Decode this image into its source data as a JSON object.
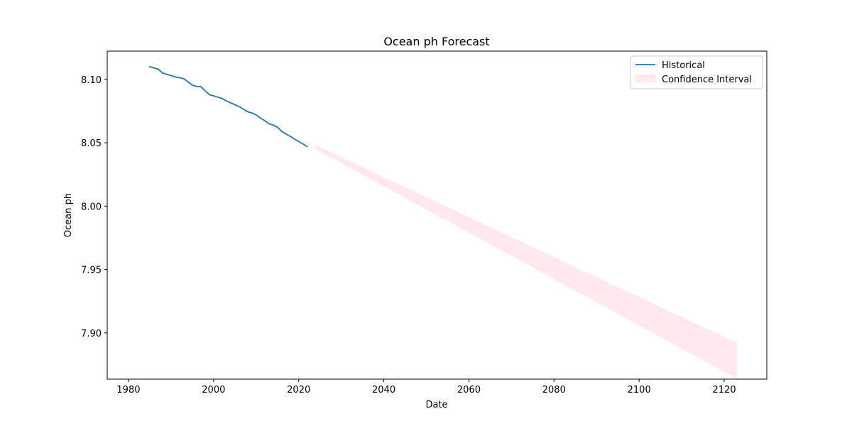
{
  "chart_data": {
    "type": "line",
    "title": "Ocean ph Forecast",
    "xlabel": "Date",
    "ylabel": "Ocean ph",
    "xlim": [
      1975,
      2130
    ],
    "ylim": [
      7.8635,
      8.1223
    ],
    "x_ticks": [
      1980,
      2000,
      2020,
      2040,
      2060,
      2080,
      2100,
      2120
    ],
    "y_ticks": [
      7.9,
      7.95,
      8.0,
      8.05,
      8.1
    ],
    "grid": false,
    "legend_position": "top-right",
    "legend": [
      {
        "label": "Historical",
        "kind": "line",
        "color": "#1f77b4"
      },
      {
        "label": "Confidence Interval",
        "kind": "patch",
        "color": "#ffc0cb"
      }
    ],
    "series": [
      {
        "name": "Historical",
        "color": "#1f77b4",
        "x": [
          1985,
          1986,
          1987,
          1988,
          1989,
          1990,
          1991,
          1992,
          1993,
          1994,
          1995,
          1996,
          1997,
          1998,
          1999,
          2000,
          2001,
          2002,
          2003,
          2004,
          2005,
          2006,
          2007,
          2008,
          2009,
          2010,
          2011,
          2012,
          2013,
          2014,
          2015,
          2016,
          2017,
          2018,
          2019,
          2020,
          2021,
          2022
        ],
        "y": [
          8.11,
          8.109,
          8.108,
          8.105,
          8.104,
          8.103,
          8.102,
          8.1013,
          8.1005,
          8.098,
          8.0955,
          8.0945,
          8.0943,
          8.091,
          8.088,
          8.087,
          8.086,
          8.085,
          8.083,
          8.0815,
          8.08,
          8.0785,
          8.0765,
          8.0745,
          8.0735,
          8.072,
          8.0695,
          8.0675,
          8.065,
          8.064,
          8.0623,
          8.059,
          8.057,
          8.055,
          8.053,
          8.051,
          8.049,
          8.047
        ]
      }
    ],
    "confidence_interval": {
      "name": "Confidence Interval",
      "color": "#ffc0cb",
      "opacity": 0.35,
      "x": [
        2024,
        2123
      ],
      "lower": [
        8.045,
        7.8637
      ],
      "upper": [
        8.048,
        7.892
      ]
    }
  }
}
